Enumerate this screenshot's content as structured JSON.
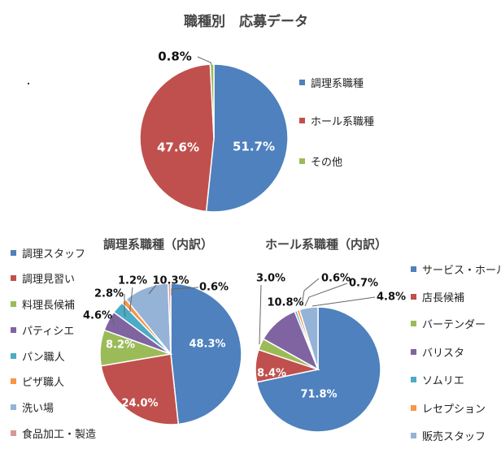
{
  "colors": {
    "blue": "#4e81bd",
    "red": "#c0504d",
    "green": "#9bbb59",
    "purple": "#8064a2",
    "teal": "#4bacc6",
    "orange": "#f79646",
    "lightblue": "#95b3d7",
    "pink": "#da9694"
  },
  "chart_data": [
    {
      "type": "pie",
      "title": "職種別　応募データ",
      "categories": [
        "調理系職種",
        "ホール系職種",
        "その他"
      ],
      "values": [
        51.7,
        47.6,
        0.8
      ],
      "labels": [
        "51.7%",
        "47.6%",
        "0.8%"
      ],
      "colors": [
        "#4e81bd",
        "#c0504d",
        "#9bbb59"
      ],
      "legend": "right"
    },
    {
      "type": "pie",
      "title": "調理系職種（内訳）",
      "categories": [
        "調理スタッフ",
        "調理見習い",
        "料理長候補",
        "パティシエ",
        "パン職人",
        "ピザ職人",
        "洗い場",
        "食品加工・製造"
      ],
      "values": [
        48.3,
        24.0,
        8.2,
        4.6,
        2.8,
        1.2,
        10.3,
        0.6
      ],
      "labels": [
        "48.3%",
        "24.0%",
        "8.2%",
        "4.6%",
        "2.8%",
        "1.2%",
        "10.3%",
        "0.6%"
      ],
      "colors": [
        "#4e81bd",
        "#c0504d",
        "#9bbb59",
        "#8064a2",
        "#4bacc6",
        "#f79646",
        "#95b3d7",
        "#da9694"
      ],
      "legend": "left"
    },
    {
      "type": "pie",
      "title": "ホール系職種（内訳）",
      "categories": [
        "サービス・ホール",
        "店長候補",
        "バーテンダー",
        "バリスタ",
        "ソムリエ",
        "レセプション",
        "販売スタッフ"
      ],
      "values": [
        71.8,
        8.4,
        3.0,
        10.8,
        0.6,
        0.7,
        4.8
      ],
      "labels": [
        "71.8%",
        "8.4%",
        "3.0%",
        "10.8%",
        "0.6%",
        "0.7%",
        "4.8%"
      ],
      "colors": [
        "#4e81bd",
        "#c0504d",
        "#9bbb59",
        "#8064a2",
        "#4bacc6",
        "#f79646",
        "#95b3d7"
      ],
      "legend": "right"
    }
  ]
}
